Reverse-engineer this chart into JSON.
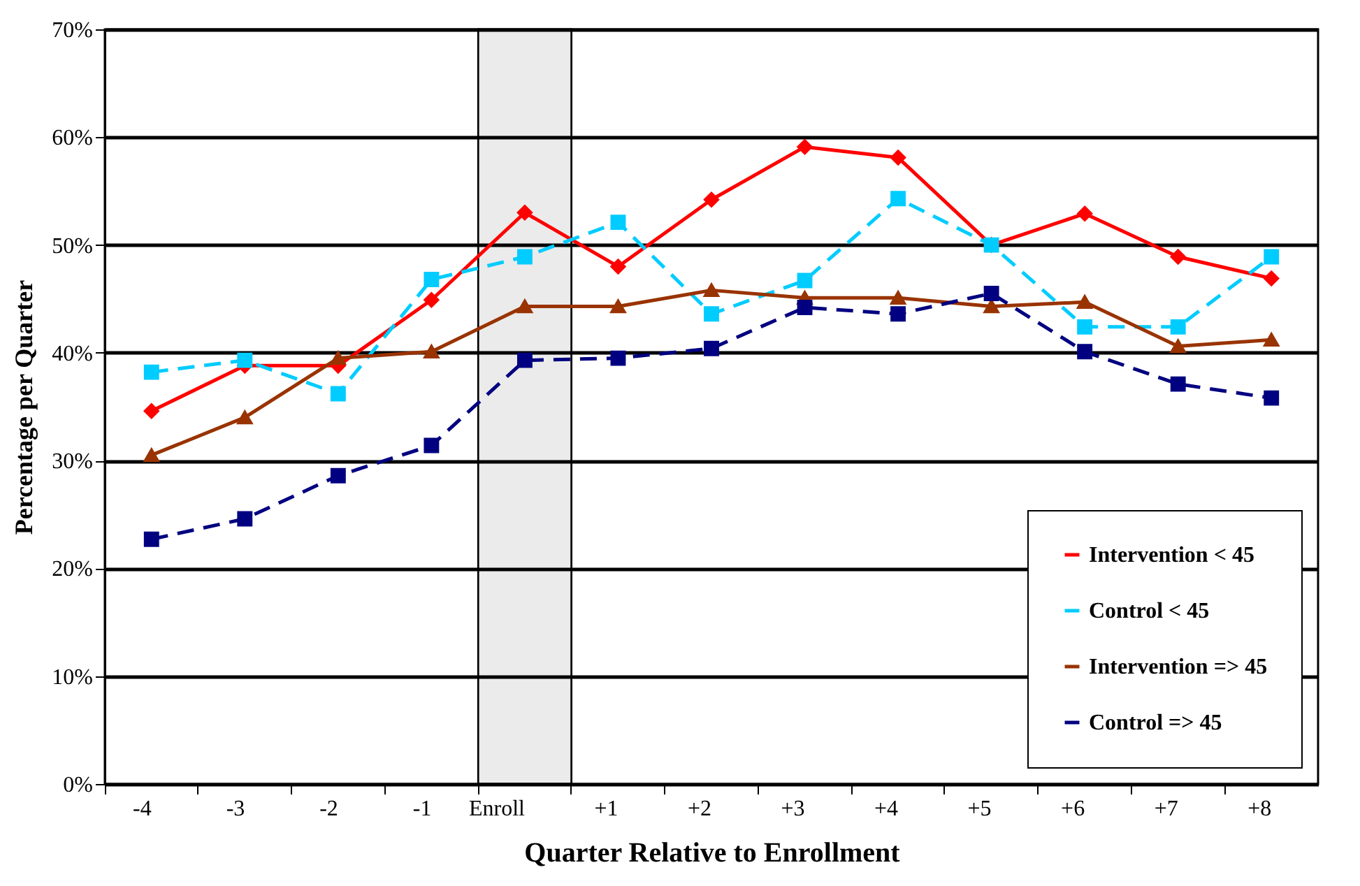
{
  "chart_data": {
    "type": "line",
    "xlabel": "Quarter Relative to Enrollment",
    "ylabel": "Percentage per Quarter",
    "categories": [
      "-4",
      "-3",
      "-2",
      "-1",
      "Enroll",
      "+1",
      "+2",
      "+3",
      "+4",
      "+5",
      "+6",
      "+7",
      "+8"
    ],
    "ylim": [
      0,
      70
    ],
    "yticks": [
      {
        "value": 0,
        "label": "0%"
      },
      {
        "value": 10,
        "label": "10%"
      },
      {
        "value": 20,
        "label": "20%"
      },
      {
        "value": 30,
        "label": "30%"
      },
      {
        "value": 40,
        "label": "40%"
      },
      {
        "value": 50,
        "label": "50%"
      },
      {
        "value": 60,
        "label": "60%"
      },
      {
        "value": 70,
        "label": "70%"
      }
    ],
    "grid": "y",
    "legend": "bottom right",
    "bands": [
      {
        "axis": "x",
        "from": "Enroll",
        "to": "Enroll",
        "color": "#000000"
      }
    ],
    "series": [
      {
        "name": "Intervention < 45",
        "color": "#ff0000",
        "marker": "diamond",
        "line_style": "solid",
        "values": [
          34.6,
          38.8,
          38.8,
          44.9,
          53.0,
          48.0,
          54.2,
          59.1,
          58.1,
          50.0,
          52.9,
          48.9,
          46.9
        ]
      },
      {
        "name": "Control < 45",
        "color": "#00ccff",
        "marker": "square",
        "line_style": "dashed",
        "values": [
          38.2,
          39.3,
          36.2,
          46.8,
          48.9,
          52.1,
          43.6,
          46.7,
          54.3,
          50.0,
          42.4,
          42.4,
          48.9
        ]
      },
      {
        "name": "Intervention => 45",
        "color": "#993300",
        "marker": "triangle",
        "line_style": "solid",
        "values": [
          30.5,
          34.0,
          39.5,
          40.1,
          44.3,
          44.3,
          45.8,
          45.1,
          45.1,
          44.3,
          44.7,
          40.6,
          41.2
        ]
      },
      {
        "name": "Control => 45",
        "color": "#000080",
        "marker": "square",
        "line_style": "dashed",
        "values": [
          22.7,
          24.6,
          28.6,
          31.4,
          39.3,
          39.5,
          40.4,
          44.2,
          43.6,
          45.5,
          40.1,
          37.1,
          35.8
        ]
      }
    ]
  }
}
